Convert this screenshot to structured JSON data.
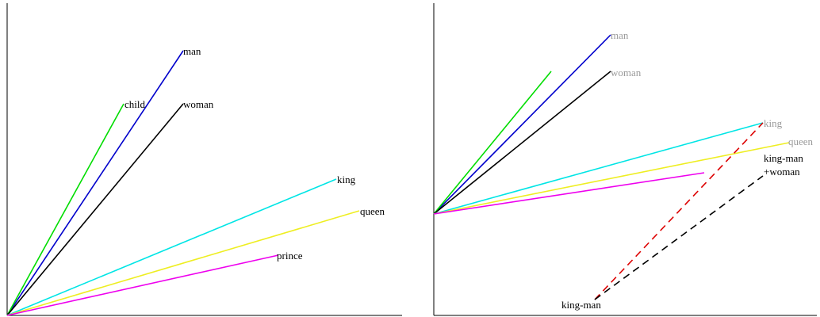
{
  "panels": [
    {
      "name": "left-panel",
      "vectors": [
        {
          "label": "man",
          "color": "#0000cc"
        },
        {
          "label": "child",
          "color": "#00dd00"
        },
        {
          "label": "woman",
          "color": "#000000"
        },
        {
          "label": "king",
          "color": "#00e5e5"
        },
        {
          "label": "queen",
          "color": "#eeee22"
        },
        {
          "label": "prince",
          "color": "#ee00ee"
        }
      ]
    },
    {
      "name": "right-panel",
      "vectors": [
        {
          "label": "man",
          "color": "#0000cc"
        },
        {
          "label": "",
          "color": "#00dd00"
        },
        {
          "label": "woman",
          "color": "#000000"
        },
        {
          "label": "king",
          "color": "#00e5e5"
        },
        {
          "label": "queen",
          "color": "#eeee22"
        },
        {
          "label": "",
          "color": "#ee00ee"
        }
      ],
      "derived": [
        {
          "label_line1": "king-man",
          "label_line2": "",
          "color": "#dd0000"
        },
        {
          "label_line1": "king-man",
          "label_line2": "+woman",
          "color": "#000000"
        }
      ]
    }
  ],
  "colors": {
    "axis": "#000000",
    "gray_label": "#9a9a9a"
  }
}
